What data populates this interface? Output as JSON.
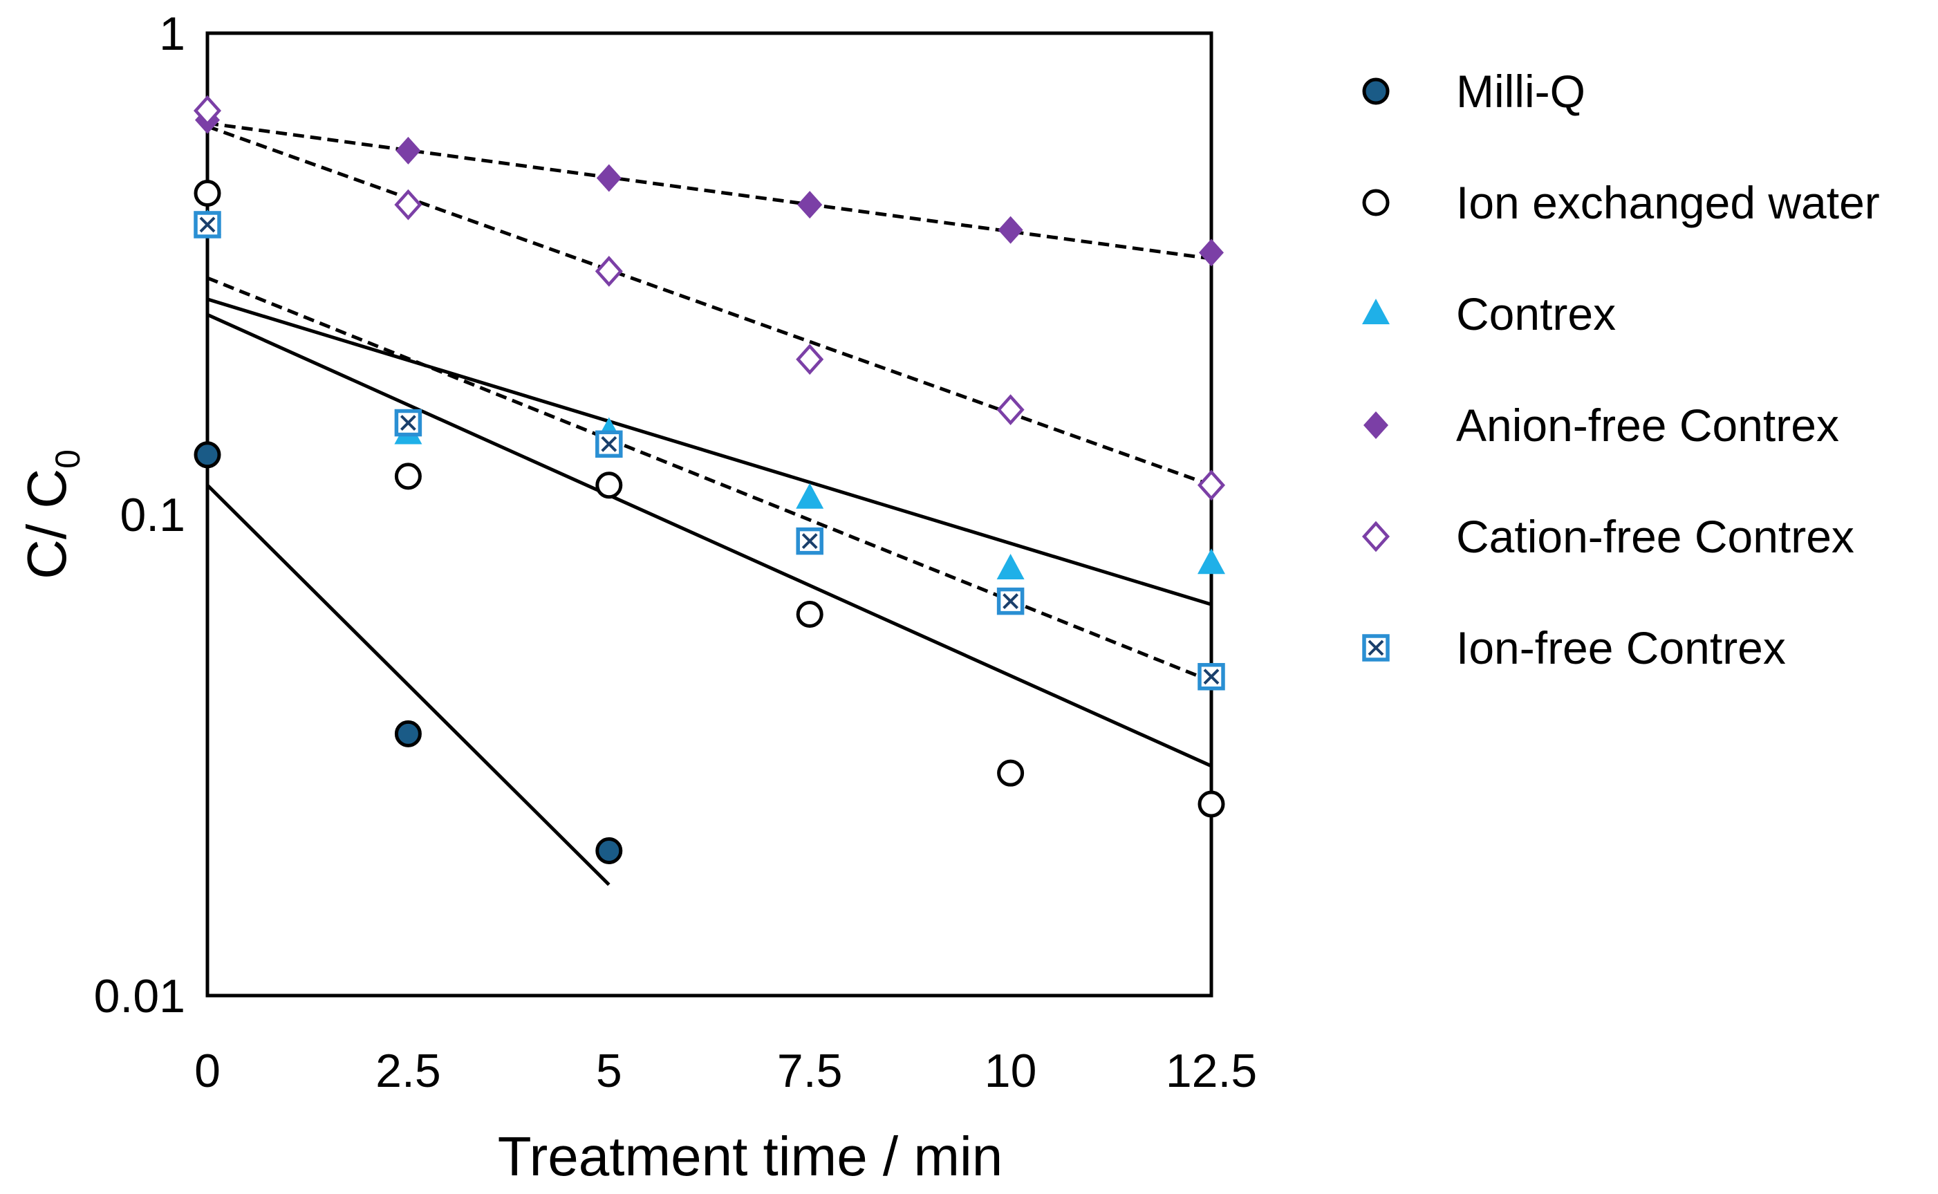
{
  "chart_data": {
    "type": "scatter",
    "xlabel": "Treatment time / min",
    "ylabel": "C/ C",
    "ylabel_subscript": "0",
    "yscale": "log",
    "xlim": [
      0,
      12.5
    ],
    "ylim": [
      0.01,
      1
    ],
    "x_ticks": [
      {
        "value": 0,
        "label": "0"
      },
      {
        "value": 2.5,
        "label": "2.5"
      },
      {
        "value": 5,
        "label": "5"
      },
      {
        "value": 7.5,
        "label": "7.5"
      },
      {
        "value": 10,
        "label": "10"
      },
      {
        "value": 12.5,
        "label": "12.5"
      }
    ],
    "y_ticks": [
      {
        "value": 1,
        "label": "1"
      },
      {
        "value": 0.1,
        "label": "0.1"
      },
      {
        "value": 0.01,
        "label": "0.01"
      }
    ],
    "series": [
      {
        "name": "Milli-Q",
        "marker": "circle-filled",
        "color": "#1a5b87",
        "x": [
          0,
          2.5,
          5
        ],
        "y": [
          0.133,
          0.035,
          0.02
        ]
      },
      {
        "name": "Ion exchanged water",
        "marker": "circle-open",
        "color": "#000000",
        "x": [
          0,
          2.5,
          5,
          7.5,
          10,
          12.5
        ],
        "y": [
          0.465,
          0.12,
          0.115,
          0.062,
          0.029,
          0.025
        ]
      },
      {
        "name": "Contrex",
        "marker": "triangle",
        "color": "#1fb0e8",
        "x": [
          0,
          2.5,
          5,
          7.5,
          10,
          12.5
        ],
        "y": [
          0.4,
          0.147,
          0.148,
          0.108,
          0.077,
          0.079
        ]
      },
      {
        "name": "Anion-free Contrex",
        "marker": "diamond-filled",
        "color": "#7b3fa6",
        "x": [
          0,
          2.5,
          5,
          7.5,
          10,
          12.5
        ],
        "y": [
          0.66,
          0.57,
          0.5,
          0.44,
          0.39,
          0.35
        ]
      },
      {
        "name": "Cation-free Contrex",
        "marker": "diamond-open",
        "color": "#7b3fa6",
        "x": [
          0,
          2.5,
          5,
          7.5,
          10,
          12.5
        ],
        "y": [
          0.69,
          0.44,
          0.32,
          0.21,
          0.165,
          0.115
        ]
      },
      {
        "name": "Ion-free Contrex",
        "marker": "square-x",
        "color": "#2a8fd3",
        "x": [
          0,
          2.5,
          5,
          7.5,
          10,
          12.5
        ],
        "y": [
          0.4,
          0.155,
          0.14,
          0.088,
          0.066,
          0.046
        ]
      }
    ],
    "fit_lines": [
      {
        "series": "Milli-Q",
        "style": "solid",
        "x": [
          0,
          5
        ],
        "y": [
          0.115,
          0.017
        ]
      },
      {
        "series": "Ion exchanged water",
        "style": "solid",
        "x": [
          0,
          12.5
        ],
        "y": [
          0.26,
          0.03
        ]
      },
      {
        "series": "Contrex",
        "style": "solid",
        "x": [
          0,
          12.5
        ],
        "y": [
          0.28,
          0.065
        ]
      },
      {
        "series": "Anion-free Contrex",
        "style": "dashed",
        "x": [
          0,
          12.5
        ],
        "y": [
          0.65,
          0.34
        ]
      },
      {
        "series": "Cation-free Contrex",
        "style": "dashed",
        "x": [
          0,
          12.5
        ],
        "y": [
          0.64,
          0.115
        ]
      },
      {
        "series": "Ion-free Contrex",
        "style": "dashed",
        "x": [
          0,
          12.5
        ],
        "y": [
          0.31,
          0.045
        ]
      }
    ],
    "legend_position": "right"
  }
}
